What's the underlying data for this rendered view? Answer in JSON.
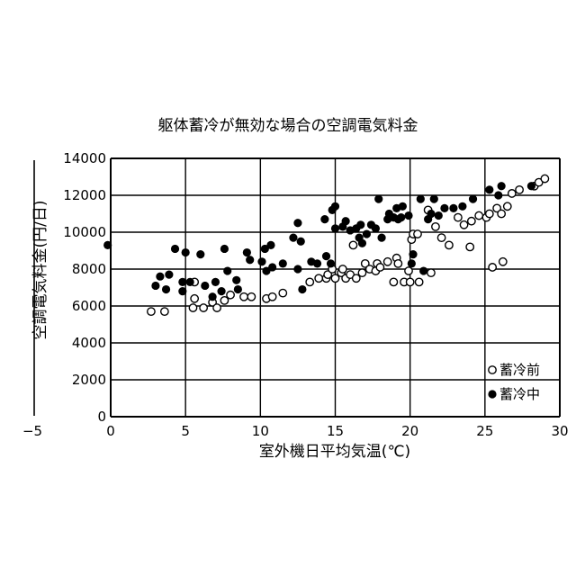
{
  "chart_data": {
    "type": "scatter",
    "title": "躯体蓄冷が無効な場合の空調電気料金",
    "xlabel": "室外機日平均気温(℃)",
    "ylabel": "空調電気料金(円/日)",
    "xlim": [
      -5,
      30
    ],
    "ylim": [
      0,
      14000
    ],
    "x_ticks": [
      "−5",
      "0",
      "5",
      "10",
      "15",
      "20",
      "25",
      "30"
    ],
    "y_ticks": [
      "0",
      "2000",
      "4000",
      "6000",
      "8000",
      "10000",
      "12000",
      "14000"
    ],
    "grid": true,
    "legend_position": "bottom-right",
    "series": [
      {
        "name": "蓄冷前",
        "marker": "open-circle",
        "points": [
          [
            2.7,
            5700
          ],
          [
            3.6,
            5700
          ],
          [
            5.5,
            5900
          ],
          [
            5.6,
            6400
          ],
          [
            5.6,
            7300
          ],
          [
            6.2,
            5900
          ],
          [
            6.8,
            6200
          ],
          [
            7.1,
            5900
          ],
          [
            7.6,
            6300
          ],
          [
            8.0,
            6600
          ],
          [
            8.9,
            6500
          ],
          [
            9.4,
            6500
          ],
          [
            10.4,
            6400
          ],
          [
            10.8,
            6500
          ],
          [
            11.5,
            6700
          ],
          [
            13.3,
            7300
          ],
          [
            13.9,
            7500
          ],
          [
            14.4,
            7500
          ],
          [
            14.5,
            7700
          ],
          [
            14.8,
            8000
          ],
          [
            15.0,
            7500
          ],
          [
            15.4,
            7800
          ],
          [
            15.5,
            8000
          ],
          [
            15.7,
            7500
          ],
          [
            16.0,
            7700
          ],
          [
            16.2,
            9300
          ],
          [
            16.4,
            7500
          ],
          [
            16.8,
            7800
          ],
          [
            17.0,
            8300
          ],
          [
            17.3,
            8000
          ],
          [
            17.7,
            7900
          ],
          [
            17.8,
            8300
          ],
          [
            18.0,
            8100
          ],
          [
            18.5,
            8400
          ],
          [
            18.9,
            7300
          ],
          [
            19.1,
            8600
          ],
          [
            19.2,
            8300
          ],
          [
            19.6,
            7300
          ],
          [
            19.9,
            7900
          ],
          [
            20.0,
            7300
          ],
          [
            20.1,
            9600
          ],
          [
            20.2,
            9900
          ],
          [
            20.5,
            9900
          ],
          [
            20.6,
            7300
          ],
          [
            21.2,
            11200
          ],
          [
            21.4,
            7800
          ],
          [
            21.7,
            10300
          ],
          [
            22.1,
            9700
          ],
          [
            22.6,
            9300
          ],
          [
            23.2,
            10800
          ],
          [
            23.6,
            10400
          ],
          [
            24.0,
            9200
          ],
          [
            24.1,
            10600
          ],
          [
            24.6,
            10900
          ],
          [
            25.1,
            10800
          ],
          [
            25.3,
            11000
          ],
          [
            25.5,
            8100
          ],
          [
            25.8,
            11300
          ],
          [
            26.1,
            11000
          ],
          [
            26.2,
            8400
          ],
          [
            26.5,
            11400
          ],
          [
            26.8,
            12100
          ],
          [
            27.3,
            12300
          ],
          [
            28.3,
            12500
          ],
          [
            28.6,
            12700
          ],
          [
            29.0,
            12900
          ]
        ]
      },
      {
        "name": "蓄冷中",
        "marker": "filled-circle",
        "points": [
          [
            -0.2,
            9300
          ],
          [
            3.0,
            7100
          ],
          [
            3.3,
            7600
          ],
          [
            3.7,
            6900
          ],
          [
            3.9,
            7700
          ],
          [
            4.3,
            9100
          ],
          [
            4.8,
            6800
          ],
          [
            4.8,
            7300
          ],
          [
            5.0,
            8900
          ],
          [
            5.3,
            7300
          ],
          [
            6.0,
            8800
          ],
          [
            6.3,
            7100
          ],
          [
            6.8,
            6500
          ],
          [
            7.0,
            7300
          ],
          [
            7.4,
            6800
          ],
          [
            7.6,
            9100
          ],
          [
            7.8,
            7900
          ],
          [
            8.4,
            7400
          ],
          [
            8.5,
            6900
          ],
          [
            9.1,
            8900
          ],
          [
            9.3,
            8500
          ],
          [
            10.1,
            8400
          ],
          [
            10.3,
            9100
          ],
          [
            10.4,
            7900
          ],
          [
            10.7,
            9300
          ],
          [
            10.8,
            8100
          ],
          [
            11.5,
            8300
          ],
          [
            12.2,
            9700
          ],
          [
            12.5,
            10500
          ],
          [
            12.5,
            8000
          ],
          [
            12.7,
            9500
          ],
          [
            12.8,
            6900
          ],
          [
            13.4,
            8400
          ],
          [
            13.8,
            8300
          ],
          [
            14.3,
            10700
          ],
          [
            14.4,
            8700
          ],
          [
            14.7,
            8300
          ],
          [
            14.8,
            11200
          ],
          [
            15.0,
            11400
          ],
          [
            15.0,
            10200
          ],
          [
            15.5,
            10300
          ],
          [
            15.7,
            10600
          ],
          [
            16.0,
            10100
          ],
          [
            16.4,
            10200
          ],
          [
            16.6,
            9700
          ],
          [
            16.7,
            10400
          ],
          [
            16.8,
            9400
          ],
          [
            17.1,
            9900
          ],
          [
            17.4,
            10400
          ],
          [
            17.7,
            10200
          ],
          [
            17.9,
            11800
          ],
          [
            18.1,
            9700
          ],
          [
            18.5,
            10700
          ],
          [
            18.6,
            11000
          ],
          [
            18.9,
            10800
          ],
          [
            19.1,
            11300
          ],
          [
            19.2,
            10700
          ],
          [
            19.4,
            10800
          ],
          [
            19.5,
            11400
          ],
          [
            19.9,
            10900
          ],
          [
            20.1,
            8300
          ],
          [
            20.2,
            8800
          ],
          [
            20.7,
            11800
          ],
          [
            20.9,
            7900
          ],
          [
            21.2,
            10700
          ],
          [
            21.4,
            11000
          ],
          [
            21.6,
            11800
          ],
          [
            21.9,
            10900
          ],
          [
            22.3,
            11300
          ],
          [
            22.9,
            11300
          ],
          [
            23.5,
            11400
          ],
          [
            24.2,
            11800
          ],
          [
            25.3,
            12300
          ],
          [
            25.9,
            12000
          ],
          [
            26.1,
            12500
          ],
          [
            28.1,
            12500
          ]
        ]
      }
    ]
  }
}
